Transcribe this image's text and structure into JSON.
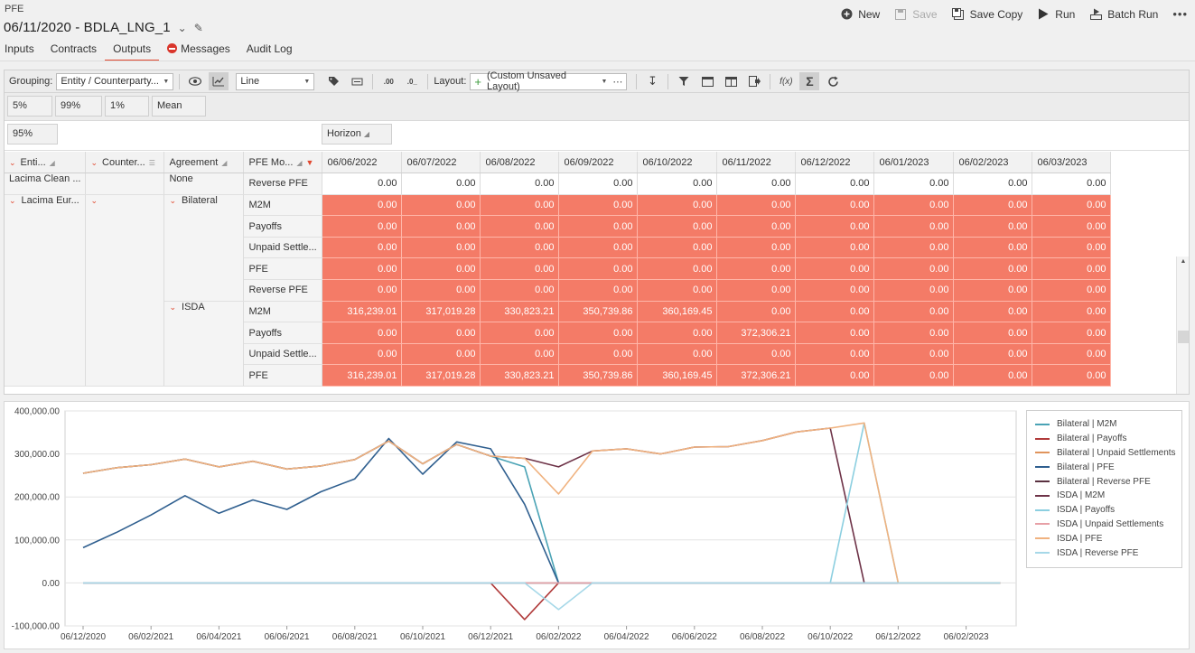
{
  "app": {
    "name": "PFE",
    "title": "06/11/2020 - BDLA_LNG_1"
  },
  "actions": [
    {
      "label": "New",
      "icon": "plus-circle-icon",
      "enabled": true
    },
    {
      "label": "Save",
      "icon": "save-icon",
      "enabled": false
    },
    {
      "label": "Save Copy",
      "icon": "save-copy-icon",
      "enabled": true
    },
    {
      "label": "Run",
      "icon": "play-icon",
      "enabled": true
    },
    {
      "label": "Batch Run",
      "icon": "batch-run-icon",
      "enabled": true
    }
  ],
  "tabs": [
    {
      "label": "Inputs",
      "active": false
    },
    {
      "label": "Contracts",
      "active": false
    },
    {
      "label": "Outputs",
      "active": true
    },
    {
      "label": "Messages",
      "active": false,
      "error": true
    },
    {
      "label": "Audit Log",
      "active": false
    }
  ],
  "toolbar": {
    "grouping_label": "Grouping:",
    "grouping_value": "Entity / Counterparty...",
    "chart_type": "Line",
    "layout_label": "Layout:",
    "layout_value": "(Custom Unsaved Layout)",
    "decimals_inc": ".00",
    "decimals_dec": ".0_",
    "formula": "f(x)",
    "sum": "Σ"
  },
  "percentiles": [
    "5%",
    "99%",
    "1%",
    "Mean"
  ],
  "filter_pill": "95%",
  "column_pill": "Horizon",
  "grid": {
    "dim_headers": [
      "Enti...",
      "Counter...",
      "Agreement",
      "PFE Mo..."
    ],
    "date_headers": [
      "06/06/2022",
      "06/07/2022",
      "06/08/2022",
      "06/09/2022",
      "06/10/2022",
      "06/11/2022",
      "06/12/2022",
      "06/01/2023",
      "06/02/2023",
      "06/03/2023"
    ],
    "entity_1": "Lacima Clean ...",
    "entity_2": "Lacima Eur...",
    "agreement_none": "None",
    "agreement_bilateral": "Bilateral",
    "agreement_isda": "ISDA",
    "rows": [
      {
        "measure": "Reverse PFE",
        "values": [
          "0.00",
          "0.00",
          "0.00",
          "0.00",
          "0.00",
          "0.00",
          "0.00",
          "0.00",
          "0.00",
          "0.00"
        ]
      },
      {
        "measure": "M2M",
        "values": [
          "0.00",
          "0.00",
          "0.00",
          "0.00",
          "0.00",
          "0.00",
          "0.00",
          "0.00",
          "0.00",
          "0.00"
        ]
      },
      {
        "measure": "Payoffs",
        "values": [
          "0.00",
          "0.00",
          "0.00",
          "0.00",
          "0.00",
          "0.00",
          "0.00",
          "0.00",
          "0.00",
          "0.00"
        ]
      },
      {
        "measure": "Unpaid Settle...",
        "values": [
          "0.00",
          "0.00",
          "0.00",
          "0.00",
          "0.00",
          "0.00",
          "0.00",
          "0.00",
          "0.00",
          "0.00"
        ]
      },
      {
        "measure": "PFE",
        "values": [
          "0.00",
          "0.00",
          "0.00",
          "0.00",
          "0.00",
          "0.00",
          "0.00",
          "0.00",
          "0.00",
          "0.00"
        ]
      },
      {
        "measure": "Reverse PFE",
        "values": [
          "0.00",
          "0.00",
          "0.00",
          "0.00",
          "0.00",
          "0.00",
          "0.00",
          "0.00",
          "0.00",
          "0.00"
        ]
      },
      {
        "measure": "M2M",
        "values": [
          "316,239.01",
          "317,019.28",
          "330,823.21",
          "350,739.86",
          "360,169.45",
          "0.00",
          "0.00",
          "0.00",
          "0.00",
          "0.00"
        ]
      },
      {
        "measure": "Payoffs",
        "values": [
          "0.00",
          "0.00",
          "0.00",
          "0.00",
          "0.00",
          "372,306.21",
          "0.00",
          "0.00",
          "0.00",
          "0.00"
        ]
      },
      {
        "measure": "Unpaid Settle...",
        "values": [
          "0.00",
          "0.00",
          "0.00",
          "0.00",
          "0.00",
          "0.00",
          "0.00",
          "0.00",
          "0.00",
          "0.00"
        ]
      },
      {
        "measure": "PFE",
        "values": [
          "316,239.01",
          "317,019.28",
          "330,823.21",
          "350,739.86",
          "360,169.45",
          "372,306.21",
          "0.00",
          "0.00",
          "0.00",
          "0.00"
        ]
      }
    ]
  },
  "colors": {
    "accent": "#e1472e",
    "hot_cell": "#f47b67"
  },
  "chart_data": {
    "type": "line",
    "x": [
      "06/12/2020",
      "06/01/2021",
      "06/02/2021",
      "06/03/2021",
      "06/04/2021",
      "06/05/2021",
      "06/06/2021",
      "06/07/2021",
      "06/08/2021",
      "06/09/2021",
      "06/10/2021",
      "06/11/2021",
      "06/12/2021",
      "06/01/2022",
      "06/02/2022",
      "06/03/2022",
      "06/04/2022",
      "06/05/2022",
      "06/06/2022",
      "06/07/2022",
      "06/08/2022",
      "06/09/2022",
      "06/10/2022",
      "06/11/2022",
      "06/12/2022",
      "06/01/2023",
      "06/02/2023",
      "06/03/2023"
    ],
    "xticks": [
      "06/12/2020",
      "06/02/2021",
      "06/04/2021",
      "06/06/2021",
      "06/08/2021",
      "06/10/2021",
      "06/12/2021",
      "06/02/2022",
      "06/04/2022",
      "06/06/2022",
      "06/08/2022",
      "06/10/2022",
      "06/12/2022",
      "06/02/2023"
    ],
    "yticks": [
      "400,000.00",
      "300,000.00",
      "200,000.00",
      "100,000.00",
      "0.00",
      "-100,000.00"
    ],
    "ylim": [
      -100000,
      400000
    ],
    "grid": true,
    "legend_position": "right",
    "series": [
      {
        "name": "Bilateral | M2M",
        "color": "#4aa3b5",
        "values": [
          255000,
          268000,
          275000,
          288000,
          270000,
          283000,
          265000,
          272000,
          287000,
          330000,
          277000,
          322000,
          295000,
          270000,
          0,
          0,
          0,
          0,
          0,
          0,
          0,
          0,
          0,
          0,
          0,
          0,
          0,
          0
        ]
      },
      {
        "name": "Bilateral | Payoffs",
        "color": "#b03a3a",
        "values": [
          0,
          0,
          0,
          0,
          0,
          0,
          0,
          0,
          0,
          0,
          0,
          0,
          0,
          -85000,
          0,
          0,
          0,
          0,
          0,
          0,
          0,
          0,
          0,
          0,
          0,
          0,
          0,
          0
        ]
      },
      {
        "name": "Bilateral | Unpaid Settlements",
        "color": "#e0945c",
        "values": [
          0,
          0,
          0,
          0,
          0,
          0,
          0,
          0,
          0,
          0,
          0,
          0,
          0,
          0,
          0,
          0,
          0,
          0,
          0,
          0,
          0,
          0,
          0,
          0,
          0,
          0,
          0,
          0
        ]
      },
      {
        "name": "Bilateral | PFE",
        "color": "#2f5f8f",
        "values": [
          82000,
          118000,
          158000,
          203000,
          162000,
          193000,
          171000,
          212000,
          242000,
          336000,
          253000,
          328000,
          312000,
          183000,
          0,
          0,
          0,
          0,
          0,
          0,
          0,
          0,
          0,
          0,
          0,
          0,
          0,
          0
        ]
      },
      {
        "name": "Bilateral | Reverse PFE",
        "color": "#5a3140",
        "values": [
          0,
          0,
          0,
          0,
          0,
          0,
          0,
          0,
          0,
          0,
          0,
          0,
          0,
          0,
          0,
          0,
          0,
          0,
          0,
          0,
          0,
          0,
          0,
          0,
          0,
          0,
          0,
          0
        ]
      },
      {
        "name": "ISDA | M2M",
        "color": "#6e3348",
        "values": [
          255000,
          268000,
          275000,
          288000,
          270000,
          283000,
          265000,
          272000,
          287000,
          330000,
          277000,
          322000,
          295000,
          290000,
          270000,
          307000,
          312000,
          300000,
          316000,
          317000,
          331000,
          351000,
          360000,
          0,
          0,
          0,
          0,
          0
        ]
      },
      {
        "name": "ISDA | Payoffs",
        "color": "#8ccfe0",
        "values": [
          0,
          0,
          0,
          0,
          0,
          0,
          0,
          0,
          0,
          0,
          0,
          0,
          0,
          0,
          0,
          0,
          0,
          0,
          0,
          0,
          0,
          0,
          0,
          372000,
          0,
          0,
          0,
          0
        ]
      },
      {
        "name": "ISDA | Unpaid Settlements",
        "color": "#e7a0a6",
        "values": [
          0,
          0,
          0,
          0,
          0,
          0,
          0,
          0,
          0,
          0,
          0,
          0,
          0,
          0,
          0,
          0,
          0,
          0,
          0,
          0,
          0,
          0,
          0,
          0,
          0,
          0,
          0,
          0
        ]
      },
      {
        "name": "ISDA | PFE",
        "color": "#f0b27f",
        "values": [
          255000,
          268000,
          275000,
          288000,
          270000,
          283000,
          265000,
          272000,
          287000,
          330000,
          277000,
          322000,
          295000,
          290000,
          207000,
          307000,
          312000,
          300000,
          316000,
          317000,
          331000,
          351000,
          360000,
          372000,
          0,
          0,
          0,
          0
        ]
      },
      {
        "name": "ISDA | Reverse PFE",
        "color": "#a6d8e8",
        "values": [
          0,
          0,
          0,
          0,
          0,
          0,
          0,
          0,
          0,
          0,
          0,
          0,
          0,
          0,
          -62000,
          0,
          0,
          0,
          0,
          0,
          0,
          0,
          0,
          0,
          0,
          0,
          0,
          0
        ]
      }
    ]
  }
}
